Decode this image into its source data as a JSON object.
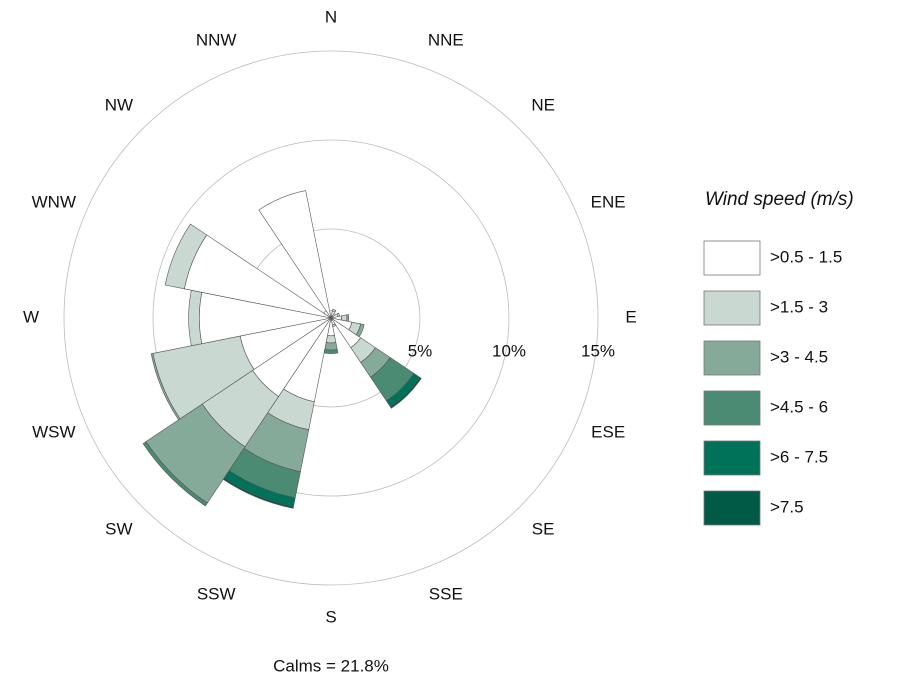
{
  "chart_data": {
    "type": "windrose",
    "directions": [
      "N",
      "NNE",
      "NE",
      "ENE",
      "E",
      "ESE",
      "SE",
      "SSE",
      "S",
      "SSW",
      "SW",
      "WSW",
      "W",
      "WNW",
      "NW",
      "NNW"
    ],
    "legend_title": "Wind speed (m/s)",
    "annotation": "Calms = 21.8%",
    "rlim": [
      0,
      15
    ],
    "rticks": [
      {
        "value": 5,
        "label": "5%"
      },
      {
        "value": 10,
        "label": "10%"
      },
      {
        "value": 15,
        "label": "15%"
      }
    ],
    "series": [
      {
        "name": ">0.5 - 1.5",
        "color": "#ffffff",
        "values": [
          0.4,
          0.4,
          0.3,
          0.4,
          0.6,
          1.2,
          2.0,
          0.4,
          1.0,
          4.8,
          5.3,
          5.2,
          7.4,
          8.4,
          0.5,
          7.3
        ]
      },
      {
        "name": ">1.5 - 3",
        "color": "#c9d8d0",
        "values": [
          0,
          0.1,
          0,
          0.1,
          0.3,
          0.5,
          1.0,
          0.1,
          0.4,
          1.6,
          3.4,
          5.0,
          0.6,
          1.1,
          0,
          0
        ]
      },
      {
        "name": ">3 - 4.5",
        "color": "#86aa99",
        "values": [
          0,
          0,
          0,
          0,
          0.1,
          0.2,
          1.0,
          0,
          0.4,
          2.4,
          3.8,
          0.1,
          0,
          0,
          0,
          0
        ]
      },
      {
        "name": ">4.5 - 6",
        "color": "#4b8a73",
        "values": [
          0,
          0,
          0,
          0,
          0,
          0,
          1.6,
          0,
          0.2,
          1.5,
          0.2,
          0,
          0,
          0,
          0,
          0
        ]
      },
      {
        "name": ">6 - 7.5",
        "color": "#00725a",
        "values": [
          0,
          0,
          0,
          0,
          0,
          0,
          0.4,
          0,
          0,
          0.5,
          0,
          0,
          0,
          0,
          0,
          0
        ]
      },
      {
        "name": ">7.5",
        "color": "#005a45",
        "values": [
          0,
          0,
          0,
          0,
          0,
          0,
          0.1,
          0,
          0,
          0.1,
          0,
          0,
          0,
          0,
          0,
          0
        ]
      }
    ]
  }
}
